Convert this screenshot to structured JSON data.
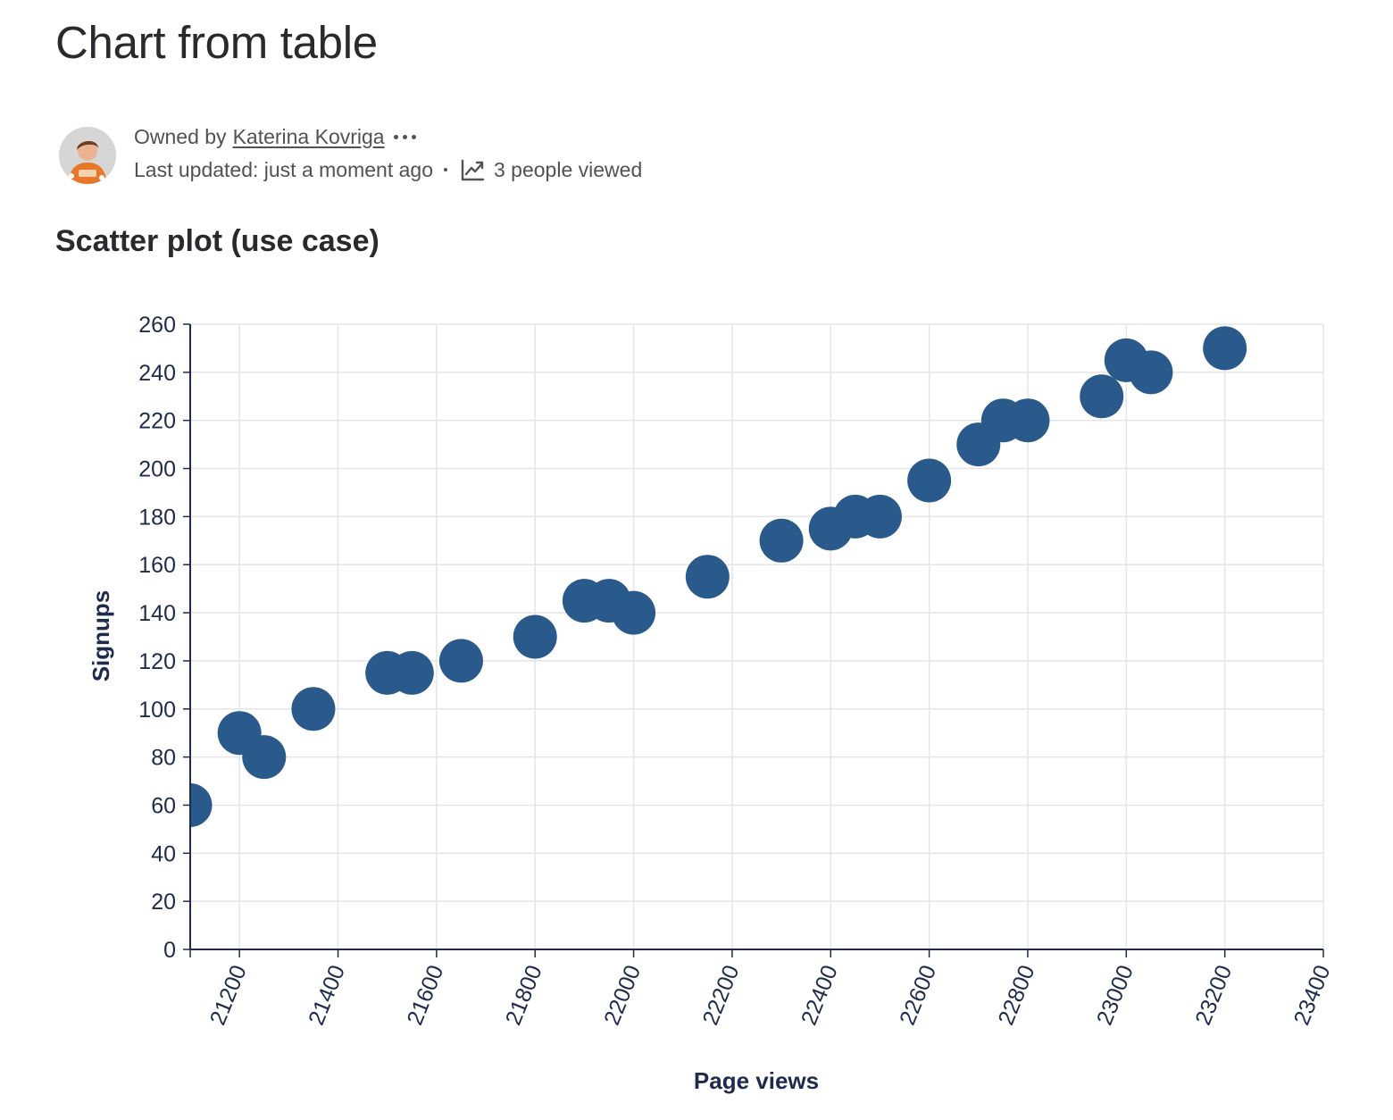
{
  "page": {
    "title": "Chart from table"
  },
  "byline": {
    "owned_by_label": "Owned by",
    "owner_name": "Katerina Kovriga",
    "last_updated": "Last updated: just a moment ago",
    "views": "3 people viewed"
  },
  "section": {
    "title": "Scatter plot (use case)"
  },
  "chart_data": {
    "type": "scatter",
    "title": "",
    "xlabel": "Page views",
    "ylabel": "Signups",
    "xlim": [
      21100,
      23400
    ],
    "ylim": [
      0,
      260
    ],
    "x_ticks": [
      21200,
      21400,
      21600,
      21800,
      22000,
      22200,
      22400,
      22600,
      22800,
      23000,
      23200,
      23400
    ],
    "y_ticks": [
      0,
      20,
      40,
      60,
      80,
      100,
      120,
      140,
      160,
      180,
      200,
      220,
      240,
      260
    ],
    "grid": true,
    "point_color": "#2a5a8c",
    "points": [
      {
        "x": 21100,
        "y": 60
      },
      {
        "x": 21200,
        "y": 90
      },
      {
        "x": 21250,
        "y": 80
      },
      {
        "x": 21350,
        "y": 100
      },
      {
        "x": 21500,
        "y": 115
      },
      {
        "x": 21550,
        "y": 115
      },
      {
        "x": 21650,
        "y": 120
      },
      {
        "x": 21800,
        "y": 130
      },
      {
        "x": 21900,
        "y": 145
      },
      {
        "x": 21950,
        "y": 145
      },
      {
        "x": 22000,
        "y": 140
      },
      {
        "x": 22150,
        "y": 155
      },
      {
        "x": 22300,
        "y": 170
      },
      {
        "x": 22400,
        "y": 175
      },
      {
        "x": 22450,
        "y": 180
      },
      {
        "x": 22500,
        "y": 180
      },
      {
        "x": 22600,
        "y": 195
      },
      {
        "x": 22700,
        "y": 210
      },
      {
        "x": 22750,
        "y": 220
      },
      {
        "x": 22800,
        "y": 220
      },
      {
        "x": 22950,
        "y": 230
      },
      {
        "x": 23000,
        "y": 245
      },
      {
        "x": 23050,
        "y": 240
      },
      {
        "x": 23200,
        "y": 250
      }
    ]
  }
}
